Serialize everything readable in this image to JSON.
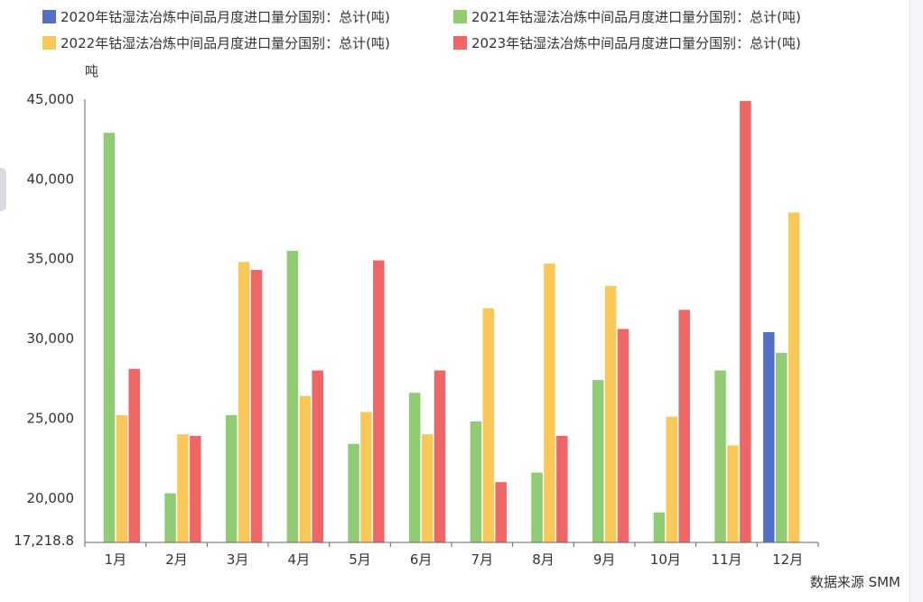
{
  "colors": {
    "s2020": "#5470c6",
    "s2021": "#91cc75",
    "s2022": "#fac858",
    "s2023": "#ee6666"
  },
  "chart_data": {
    "type": "bar",
    "title": "",
    "ylabel": "吨",
    "xlabel": "",
    "source": "数据来源 SMM",
    "ylim": [
      17218.8,
      45000
    ],
    "yticks": [
      {
        "value": 45000,
        "label": "45,000"
      },
      {
        "value": 40000,
        "label": "40,000"
      },
      {
        "value": 35000,
        "label": "35,000"
      },
      {
        "value": 30000,
        "label": "30,000"
      },
      {
        "value": 25000,
        "label": "25,000"
      },
      {
        "value": 20000,
        "label": "20,000"
      },
      {
        "value": 17218.8,
        "label": "17,218.8"
      }
    ],
    "categories": [
      "1月",
      "2月",
      "3月",
      "4月",
      "5月",
      "6月",
      "7月",
      "8月",
      "9月",
      "10月",
      "11月",
      "12月"
    ],
    "grid": false,
    "legend_position": "top",
    "series": [
      {
        "name": "2020年钴湿法冶炼中间品月度进口量分国别：总计(吨)",
        "color_key": "s2020",
        "values": [
          null,
          null,
          null,
          null,
          null,
          null,
          null,
          null,
          null,
          null,
          null,
          30400
        ]
      },
      {
        "name": "2021年钴湿法冶炼中间品月度进口量分国别：总计(吨)",
        "color_key": "s2021",
        "values": [
          42900,
          20300,
          25200,
          35500,
          23400,
          26600,
          24800,
          21600,
          27400,
          19100,
          28000,
          29100
        ]
      },
      {
        "name": "2022年钴湿法冶炼中间品月度进口量分国别：总计(吨)",
        "color_key": "s2022",
        "values": [
          25200,
          24000,
          34800,
          26400,
          25400,
          24000,
          31900,
          34700,
          33300,
          25100,
          23300,
          37900
        ]
      },
      {
        "name": "2023年钴湿法冶炼中间品月度进口量分国别：总计(吨)",
        "color_key": "s2023",
        "values": [
          28100,
          23900,
          34300,
          28000,
          34900,
          28000,
          21000,
          23900,
          30600,
          31800,
          44900,
          null
        ]
      }
    ]
  }
}
